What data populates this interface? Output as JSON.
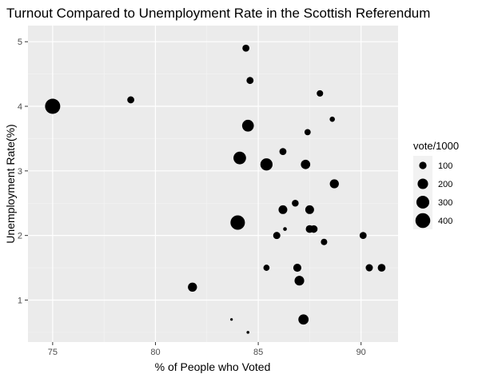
{
  "chart_data": {
    "type": "scatter",
    "title": "Turnout Compared to Unemployment Rate in the Scottish Referendum",
    "xlabel": "% of People who Voted",
    "ylabel": "Unemployment Rate(%)",
    "xlim": [
      73.8,
      91.8
    ],
    "ylim": [
      0.35,
      5.25
    ],
    "xticks": [
      75,
      80,
      85,
      90
    ],
    "yticks": [
      1,
      2,
      3,
      4,
      5
    ],
    "grid": true,
    "size_legend": {
      "title": "vote/1000",
      "placement": "right",
      "values": [
        100,
        200,
        300,
        400
      ]
    },
    "points": [
      {
        "x": 75.0,
        "y": 4.0,
        "size": 420
      },
      {
        "x": 78.8,
        "y": 4.1,
        "size": 90
      },
      {
        "x": 81.8,
        "y": 1.2,
        "size": 150
      },
      {
        "x": 83.7,
        "y": 0.7,
        "size": 10
      },
      {
        "x": 84.0,
        "y": 2.2,
        "size": 380
      },
      {
        "x": 84.1,
        "y": 3.2,
        "size": 290
      },
      {
        "x": 84.4,
        "y": 4.9,
        "size": 90
      },
      {
        "x": 84.5,
        "y": 3.7,
        "size": 250
      },
      {
        "x": 84.5,
        "y": 0.5,
        "size": 15
      },
      {
        "x": 84.6,
        "y": 4.4,
        "size": 90
      },
      {
        "x": 85.4,
        "y": 3.1,
        "size": 270
      },
      {
        "x": 85.4,
        "y": 1.5,
        "size": 70
      },
      {
        "x": 85.9,
        "y": 2.0,
        "size": 95
      },
      {
        "x": 86.2,
        "y": 3.3,
        "size": 90
      },
      {
        "x": 86.2,
        "y": 2.4,
        "size": 140
      },
      {
        "x": 86.3,
        "y": 2.1,
        "size": 25
      },
      {
        "x": 86.8,
        "y": 2.5,
        "size": 85
      },
      {
        "x": 86.9,
        "y": 1.5,
        "size": 120
      },
      {
        "x": 87.0,
        "y": 1.3,
        "size": 170
      },
      {
        "x": 87.2,
        "y": 0.7,
        "size": 190
      },
      {
        "x": 87.3,
        "y": 3.1,
        "size": 160
      },
      {
        "x": 87.4,
        "y": 3.6,
        "size": 70
      },
      {
        "x": 87.5,
        "y": 2.4,
        "size": 140
      },
      {
        "x": 87.5,
        "y": 2.1,
        "size": 110
      },
      {
        "x": 87.7,
        "y": 2.1,
        "size": 105
      },
      {
        "x": 88.0,
        "y": 4.2,
        "size": 75
      },
      {
        "x": 88.2,
        "y": 1.9,
        "size": 75
      },
      {
        "x": 88.6,
        "y": 3.8,
        "size": 50
      },
      {
        "x": 88.7,
        "y": 2.8,
        "size": 150
      },
      {
        "x": 90.1,
        "y": 2.0,
        "size": 90
      },
      {
        "x": 90.4,
        "y": 1.5,
        "size": 95
      },
      {
        "x": 91.0,
        "y": 1.5,
        "size": 110
      }
    ]
  }
}
